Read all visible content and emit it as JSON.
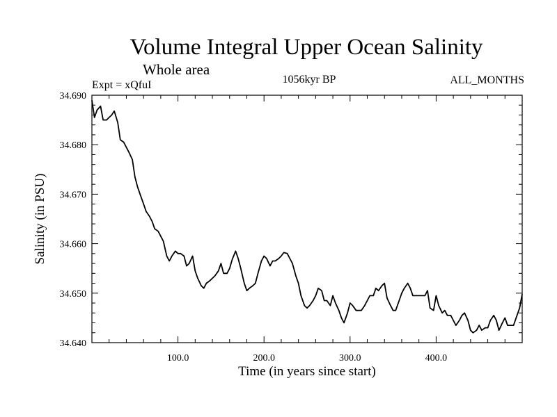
{
  "chart_data": {
    "type": "line",
    "title": "Volume Integral Upper Ocean Salinity",
    "subtitle": "Whole area",
    "experiment_label": "Expt = xQfuI",
    "period_label": "1056kyr BP",
    "months_label": "ALL_MONTHS",
    "xlabel": "Time (in years since start)",
    "ylabel": "Salinity (in PSU)",
    "xlim": [
      0,
      500
    ],
    "ylim": [
      34.64,
      34.69
    ],
    "xticks": [
      {
        "value": 100,
        "label": "100.0"
      },
      {
        "value": 200,
        "label": "200.0"
      },
      {
        "value": 300,
        "label": "300.0"
      },
      {
        "value": 400,
        "label": "400.0"
      }
    ],
    "yticks": [
      {
        "value": 34.64,
        "label": "34.640"
      },
      {
        "value": 34.65,
        "label": "34.650"
      },
      {
        "value": 34.66,
        "label": "34.660"
      },
      {
        "value": 34.67,
        "label": "34.670"
      },
      {
        "value": 34.68,
        "label": "34.680"
      },
      {
        "value": 34.69,
        "label": "34.690"
      }
    ],
    "grid": false,
    "series": [
      {
        "name": "salinity",
        "color": "#000000",
        "x": [
          0,
          3,
          6,
          10,
          13,
          17,
          20,
          23,
          26,
          30,
          33,
          37,
          40,
          43,
          47,
          50,
          53,
          56,
          60,
          63,
          67,
          70,
          73,
          77,
          80,
          83,
          87,
          90,
          93,
          97,
          100,
          103,
          107,
          110,
          113,
          117,
          120,
          123,
          127,
          130,
          133,
          137,
          140,
          143,
          147,
          150,
          153,
          157,
          160,
          163,
          167,
          170,
          173,
          177,
          180,
          183,
          187,
          190,
          193,
          197,
          200,
          203,
          207,
          210,
          213,
          217,
          220,
          223,
          227,
          230,
          233,
          237,
          240,
          243,
          247,
          250,
          253,
          257,
          260,
          263,
          267,
          270,
          273,
          277,
          280,
          283,
          287,
          290,
          293,
          297,
          300,
          303,
          307,
          310,
          313,
          317,
          320,
          323,
          327,
          330,
          333,
          337,
          340,
          343,
          347,
          350,
          353,
          357,
          360,
          363,
          367,
          370,
          373,
          377,
          380,
          383,
          387,
          390,
          393,
          397,
          400,
          403,
          407,
          410,
          413,
          417,
          420,
          423,
          427,
          430,
          433,
          437,
          440,
          443,
          447,
          450,
          453,
          457,
          460,
          463,
          467,
          470,
          473,
          477,
          480,
          483,
          487,
          490,
          493,
          497,
          500
        ],
        "values": [
          34.689,
          34.6855,
          34.687,
          34.6878,
          34.685,
          34.685,
          34.6855,
          34.686,
          34.6868,
          34.6845,
          34.681,
          34.6805,
          34.6795,
          34.6785,
          34.677,
          34.6735,
          34.6715,
          34.67,
          34.668,
          34.6665,
          34.6655,
          34.6645,
          34.663,
          34.6625,
          34.6615,
          34.6605,
          34.6575,
          34.6565,
          34.6575,
          34.6585,
          34.658,
          34.658,
          34.6575,
          34.6555,
          34.656,
          34.6575,
          34.6545,
          34.653,
          34.6515,
          34.651,
          34.652,
          34.6525,
          34.653,
          34.6535,
          34.6545,
          34.656,
          34.654,
          34.654,
          34.655,
          34.6568,
          34.6585,
          34.657,
          34.655,
          34.652,
          34.6505,
          34.651,
          34.6515,
          34.652,
          34.654,
          34.6565,
          34.6575,
          34.657,
          34.6555,
          34.6565,
          34.6565,
          34.657,
          34.6575,
          34.6582,
          34.658,
          34.657,
          34.656,
          34.6535,
          34.652,
          34.6495,
          34.6475,
          34.647,
          34.6475,
          34.6485,
          34.6495,
          34.651,
          34.6505,
          34.6485,
          34.6485,
          34.6475,
          34.6495,
          34.648,
          34.6465,
          34.645,
          34.644,
          34.646,
          34.648,
          34.6475,
          34.6465,
          34.6465,
          34.6465,
          34.6475,
          34.6485,
          34.6495,
          34.6495,
          34.651,
          34.6505,
          34.6515,
          34.652,
          34.649,
          34.6475,
          34.6465,
          34.6465,
          34.6485,
          34.65,
          34.651,
          34.652,
          34.651,
          34.6495,
          34.6495,
          34.6495,
          34.6495,
          34.6495,
          34.6505,
          34.647,
          34.6465,
          34.6495,
          34.6475,
          34.646,
          34.6465,
          34.6455,
          34.6455,
          34.6445,
          34.6435,
          34.6445,
          34.6455,
          34.646,
          34.6445,
          34.6425,
          34.642,
          34.6425,
          34.6435,
          34.6425,
          34.643,
          34.643,
          34.6445,
          34.6455,
          34.6445,
          34.6425,
          34.644,
          34.645,
          34.6435,
          34.6435,
          34.6435,
          34.645,
          34.647,
          34.6498
        ]
      }
    ]
  }
}
